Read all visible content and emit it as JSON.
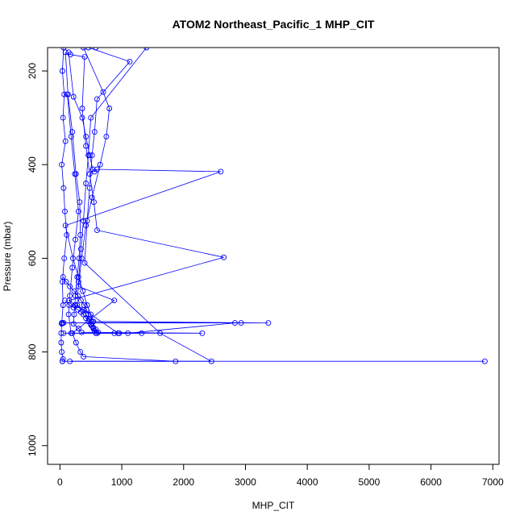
{
  "chart_data": {
    "type": "line",
    "title": "ATOM2 Northeast_Pacific_1 MHP_CIT",
    "xlabel": "MHP_CIT",
    "ylabel": "Pressure (mbar)",
    "xlim": [
      -200,
      7100
    ],
    "ylim": [
      1040,
      150
    ],
    "y_reversed": true,
    "xticks": [
      0,
      1000,
      2000,
      3000,
      4000,
      5000,
      6000,
      7000
    ],
    "yticks": [
      200,
      400,
      600,
      800,
      1000
    ],
    "grid": false,
    "legend": "none",
    "series_color": "#0000ff",
    "series": [
      {
        "marker": "open-circle",
        "x": [
          60,
          40,
          70,
          50,
          90,
          30,
          60,
          80,
          110,
          70,
          40,
          50,
          30,
          20,
          20,
          30,
          50,
          40
        ],
        "y": [
          150,
          200,
          250,
          300,
          350,
          400,
          450,
          500,
          550,
          600,
          650,
          700,
          740,
          760,
          780,
          800,
          815,
          820
        ]
      },
      {
        "marker": "open-circle",
        "x": [
          90,
          130,
          200,
          260,
          320,
          330,
          310,
          280,
          250,
          240,
          230,
          220,
          300,
          350,
          2300,
          60
        ],
        "y": [
          160,
          250,
          330,
          420,
          480,
          550,
          600,
          640,
          680,
          700,
          720,
          740,
          750,
          758,
          760,
          760
        ]
      },
      {
        "marker": "open-circle",
        "x": [
          140,
          220,
          360,
          420,
          480,
          530,
          560,
          600,
          2600,
          90,
          210,
          300,
          370,
          440,
          500,
          540,
          3370,
          30
        ],
        "y": [
          160,
          255,
          300,
          340,
          380,
          410,
          415,
          410,
          415,
          530,
          600,
          640,
          670,
          700,
          720,
          735,
          738,
          738
        ]
      },
      {
        "marker": "open-circle",
        "x": [
          170,
          400,
          360,
          420,
          480,
          550,
          600,
          2650,
          150,
          250,
          380,
          420,
          470,
          520,
          2930,
          40
        ],
        "y": [
          165,
          170,
          280,
          360,
          420,
          480,
          540,
          598,
          690,
          700,
          710,
          720,
          730,
          735,
          738,
          738
        ]
      },
      {
        "marker": "open-circle",
        "x": [
          380,
          700,
          800,
          750,
          650,
          520,
          420,
          350,
          300,
          880,
          200,
          260,
          330,
          380,
          1870,
          6870,
          40
        ],
        "y": [
          150,
          245,
          280,
          340,
          400,
          470,
          530,
          600,
          660,
          690,
          760,
          780,
          800,
          810,
          820,
          820,
          820
        ]
      },
      {
        "marker": "open-circle",
        "x": [
          460,
          1130,
          600,
          560,
          520,
          480,
          440,
          400,
          1620,
          2450,
          160
        ],
        "y": [
          150,
          180,
          260,
          330,
          380,
          450,
          520,
          610,
          760,
          820,
          820
        ]
      },
      {
        "marker": "open-circle",
        "x": [
          580,
          1400,
          500,
          460,
          420,
          380,
          340,
          300,
          280,
          940,
          1320
        ],
        "y": [
          150,
          150,
          300,
          380,
          440,
          520,
          580,
          650,
          700,
          760,
          760
        ]
      },
      {
        "marker": "open-circle",
        "x": [
          120,
          180,
          240,
          300,
          250,
          200,
          160,
          140,
          180,
          1100,
          2830,
          60
        ],
        "y": [
          250,
          340,
          420,
          500,
          560,
          620,
          680,
          720,
          760,
          760,
          738,
          738
        ]
      },
      {
        "marker": "open-circle",
        "x": [
          50,
          100,
          160,
          230,
          290,
          340,
          390,
          430,
          460,
          480,
          500,
          520,
          540,
          560,
          580,
          600
        ],
        "y": [
          640,
          650,
          660,
          670,
          680,
          690,
          700,
          710,
          720,
          730,
          740,
          745,
          750,
          755,
          760,
          760
        ]
      },
      {
        "marker": "open-circle",
        "x": [
          80,
          150,
          220,
          290,
          340,
          380,
          420,
          460,
          500,
          540,
          580,
          620,
          880,
          960
        ],
        "y": [
          690,
          700,
          705,
          710,
          715,
          720,
          728,
          735,
          742,
          748,
          752,
          758,
          760,
          760
        ]
      }
    ]
  }
}
